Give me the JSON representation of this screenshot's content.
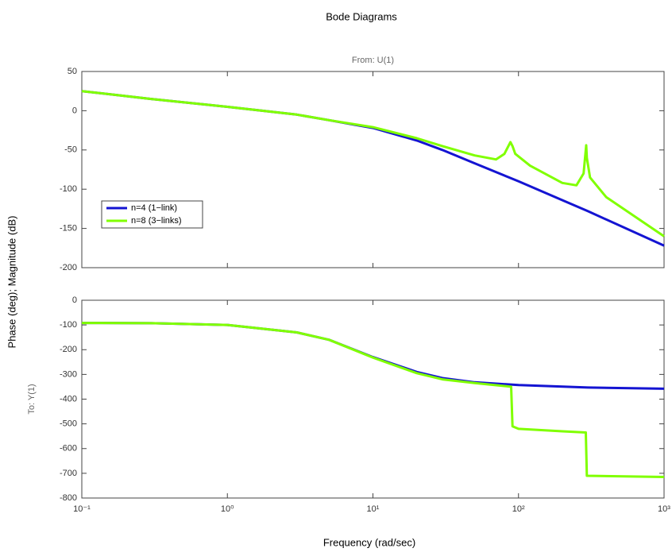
{
  "title": "Bode Diagrams",
  "xlabel": "Frequency (rad/sec)",
  "ylabel": "Phase (deg); Magnitude (dB)",
  "chart_data": [
    {
      "type": "line",
      "title": "From: U(1)",
      "xscale": "log",
      "xlim": [
        0.1,
        1000
      ],
      "xticks": [
        0.1,
        1,
        10,
        100,
        1000
      ],
      "ylim": [
        -200,
        50
      ],
      "yticks": [
        50,
        0,
        -50,
        -100,
        -150,
        -200
      ],
      "grid": false,
      "legend": "center left",
      "series": [
        {
          "name": "n=4 (1−link)",
          "color": "#1414d2",
          "x": [
            0.1,
            0.3,
            1,
            3,
            5,
            10,
            20,
            30,
            50,
            100,
            300,
            1000
          ],
          "values": [
            25,
            15,
            5,
            -5,
            -12,
            -22,
            -38,
            -50,
            -67,
            -90,
            -128,
            -172
          ]
        },
        {
          "name": "n=8 (3−links)",
          "color": "#80ff00",
          "x": [
            0.1,
            0.3,
            1,
            3,
            5,
            10,
            20,
            30,
            50,
            70,
            80,
            88,
            91,
            95,
            120,
            200,
            250,
            280,
            292,
            295,
            310,
            400,
            1000
          ],
          "values": [
            25,
            15,
            5,
            -5,
            -12,
            -21,
            -35,
            -45,
            -57,
            -62,
            -55,
            -40,
            -45,
            -55,
            -70,
            -92,
            -95,
            -80,
            -44,
            -60,
            -85,
            -110,
            -160
          ]
        }
      ]
    },
    {
      "type": "line",
      "ylabel": "To: Y(1)",
      "xscale": "log",
      "xlim": [
        0.1,
        1000
      ],
      "xticks": [
        {
          "value": 0.1,
          "label": "10⁻¹"
        },
        {
          "value": 1,
          "label": "10⁰"
        },
        {
          "value": 10,
          "label": "10¹"
        },
        {
          "value": 100,
          "label": "10²"
        },
        {
          "value": 1000,
          "label": "10³"
        }
      ],
      "ylim": [
        -800,
        0
      ],
      "yticks": [
        0,
        -100,
        -200,
        -300,
        -400,
        -500,
        -600,
        -700,
        -800
      ],
      "grid": false,
      "series": [
        {
          "name": "n=4 (1−link)",
          "color": "#1414d2",
          "x": [
            0.1,
            0.3,
            1,
            3,
            5,
            10,
            20,
            30,
            50,
            100,
            300,
            1000
          ],
          "values": [
            -92,
            -93,
            -100,
            -130,
            -160,
            -230,
            -290,
            -315,
            -332,
            -343,
            -353,
            -358
          ]
        },
        {
          "name": "n=8 (3−links)",
          "color": "#80ff00",
          "x": [
            0.1,
            0.3,
            1,
            3,
            5,
            10,
            20,
            30,
            50,
            89,
            91,
            100,
            200,
            290,
            295,
            1000
          ],
          "values": [
            -92,
            -93,
            -100,
            -130,
            -160,
            -232,
            -295,
            -320,
            -335,
            -350,
            -510,
            -520,
            -530,
            -535,
            -710,
            -715
          ]
        }
      ]
    }
  ]
}
